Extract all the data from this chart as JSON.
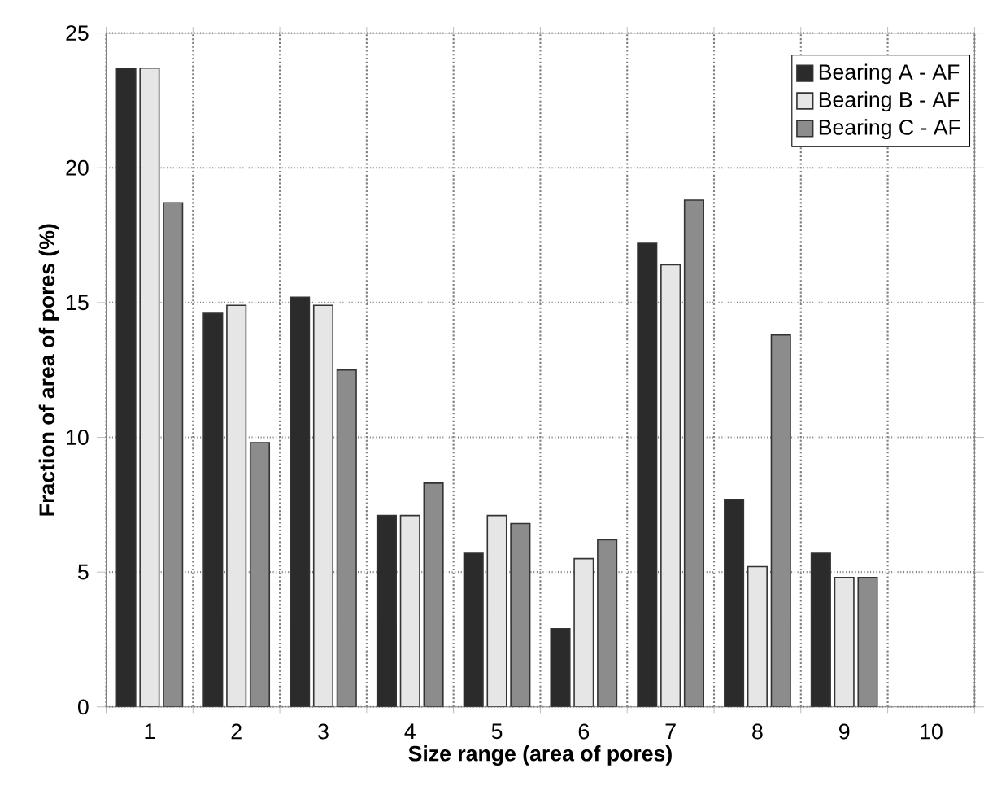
{
  "chart_data": {
    "type": "bar",
    "xlabel": "Size range (area of pores)",
    "ylabel": "Fraction of area of pores (%)",
    "categories": [
      "1",
      "2",
      "3",
      "4",
      "5",
      "6",
      "7",
      "8",
      "9",
      "10"
    ],
    "series": [
      {
        "name": "Bearing A - AF",
        "color": "#2b2b2b",
        "values": [
          23.7,
          14.6,
          15.2,
          7.1,
          5.7,
          2.9,
          17.2,
          7.7,
          5.7,
          null
        ]
      },
      {
        "name": "Bearing B - AF",
        "color": "#e6e6e6",
        "values": [
          23.7,
          14.9,
          14.9,
          7.1,
          7.1,
          5.5,
          16.4,
          5.2,
          4.8,
          null
        ]
      },
      {
        "name": "Bearing C - AF",
        "color": "#8c8c8c",
        "values": [
          18.7,
          9.8,
          12.5,
          8.3,
          6.8,
          6.2,
          18.8,
          13.8,
          4.8,
          null
        ]
      }
    ],
    "ylim": [
      0,
      25
    ],
    "yticks": [
      0,
      5,
      10,
      15,
      20,
      25
    ],
    "grid": true,
    "legend": "top right"
  }
}
